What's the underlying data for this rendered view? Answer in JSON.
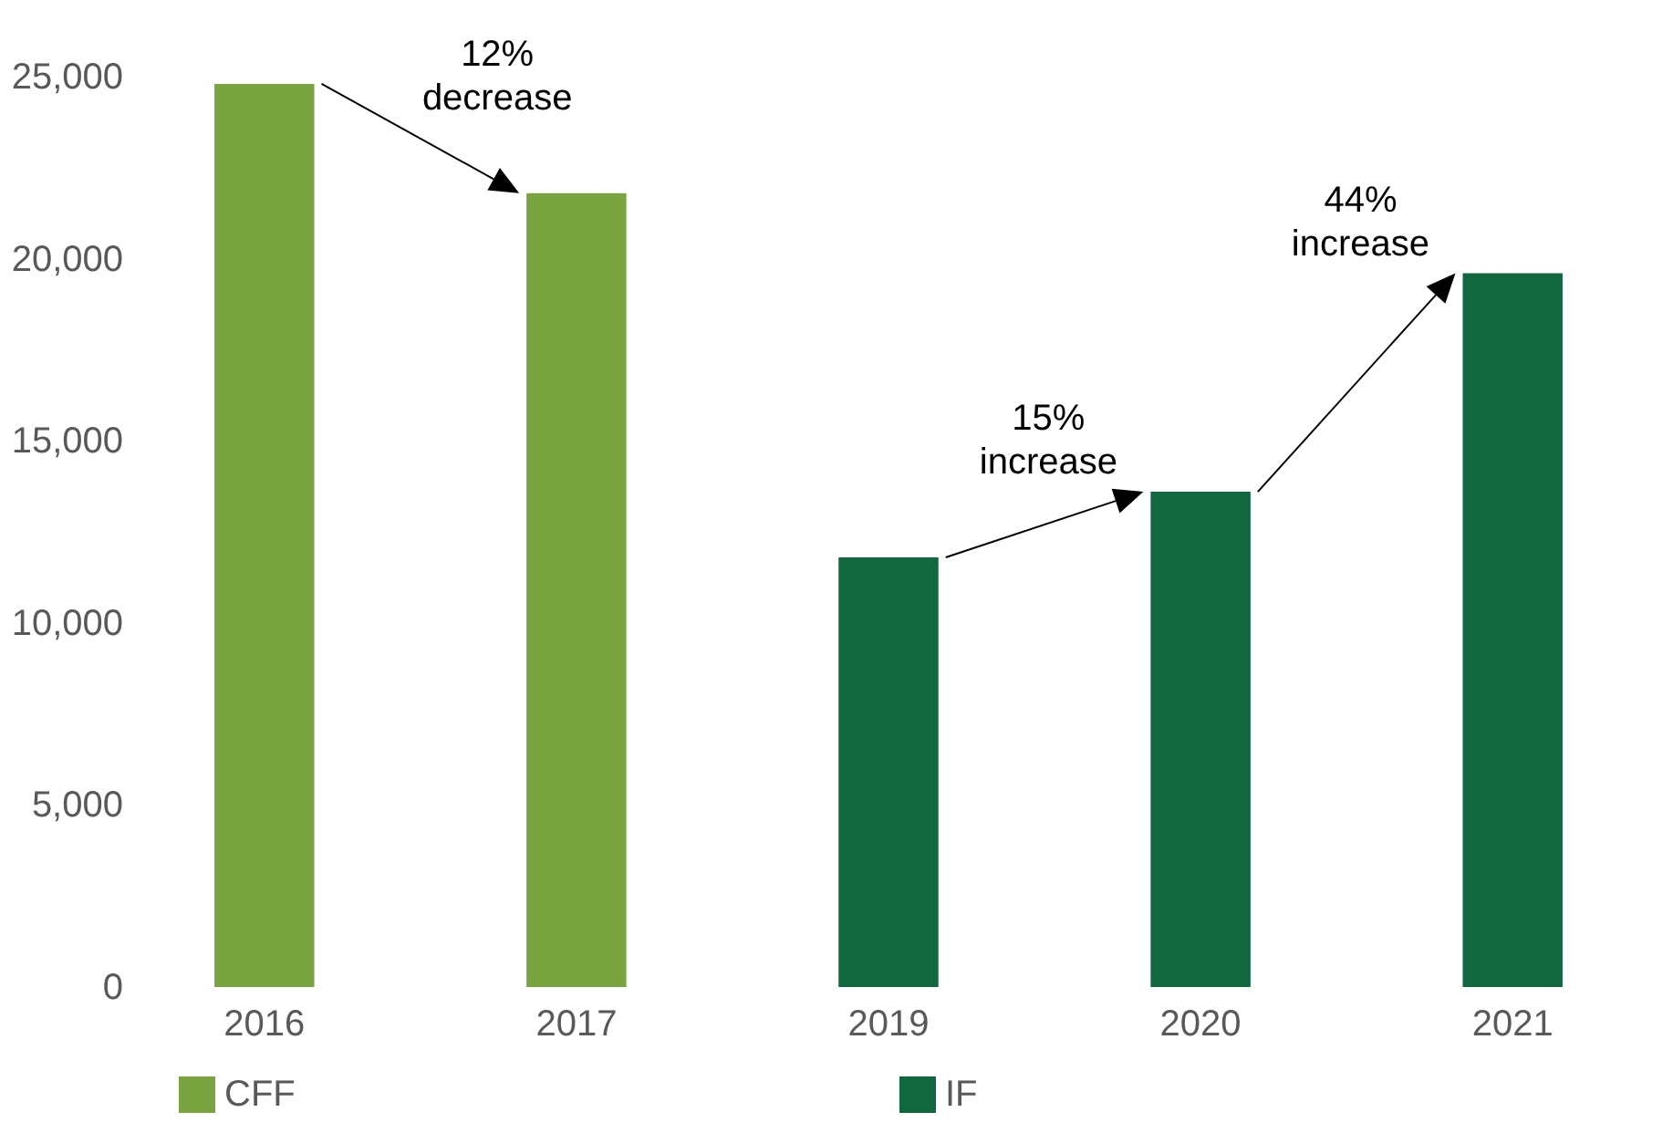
{
  "chart_data": {
    "type": "bar",
    "categories": [
      "2016",
      "2017",
      "2019",
      "2020",
      "2021"
    ],
    "series": [
      {
        "name": "CFF",
        "color": "#7aa43f",
        "values": [
          24800,
          21800,
          null,
          null,
          null
        ]
      },
      {
        "name": "IF",
        "color": "#12683e",
        "values": [
          null,
          null,
          11800,
          13600,
          19600
        ]
      }
    ],
    "ylim": [
      0,
      25000
    ],
    "yticks": [
      0,
      {
        "value": 5000,
        "label": "5,000"
      },
      {
        "value": 10000,
        "label": "10,000"
      },
      {
        "value": 15000,
        "label": "15,000"
      },
      {
        "value": 20000,
        "label": "20,000"
      },
      {
        "value": 25000,
        "label": "25,000"
      }
    ],
    "legend": "bottom",
    "annotations": [
      {
        "text": "12% decrease",
        "x": "2017",
        "y": 21800
      },
      {
        "text": "15% increase",
        "x": "2020",
        "y": 13600
      },
      {
        "text": "44% increase",
        "x": "2021",
        "y": 19600
      }
    ]
  }
}
